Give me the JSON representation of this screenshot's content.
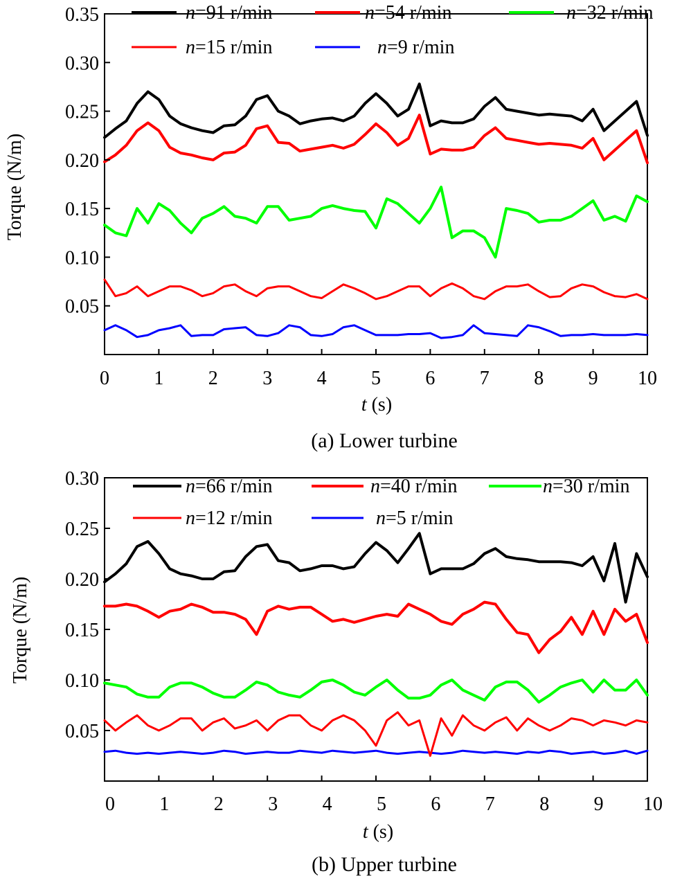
{
  "chart_data": [
    {
      "type": "line",
      "caption": "(a) Lower turbine",
      "xlabel_italic": "t",
      "xlabel_unit": " (s)",
      "ylabel": "Torque (N/m)",
      "xlim": [
        0,
        10
      ],
      "ylim": [
        0,
        0.35
      ],
      "xticks": [
        "0",
        "1",
        "2",
        "3",
        "4",
        "5",
        "6",
        "7",
        "8",
        "9",
        "10"
      ],
      "yticks": [
        "0.05",
        "0.10",
        "0.15",
        "0.20",
        "0.25",
        "0.30",
        "0.35"
      ],
      "x": [
        0,
        0.2,
        0.4,
        0.6,
        0.8,
        1.0,
        1.2,
        1.4,
        1.6,
        1.8,
        2.0,
        2.2,
        2.4,
        2.6,
        2.8,
        3.0,
        3.2,
        3.4,
        3.6,
        3.8,
        4.0,
        4.2,
        4.4,
        4.6,
        4.8,
        5.0,
        5.2,
        5.4,
        5.6,
        5.8,
        6.0,
        6.2,
        6.4,
        6.6,
        6.8,
        7.0,
        7.2,
        7.4,
        7.6,
        7.8,
        8.0,
        8.2,
        8.4,
        8.6,
        8.8,
        9.0,
        9.2,
        9.4,
        9.6,
        9.8,
        10.0
      ],
      "series": [
        {
          "italic": "n",
          "name": "=91 r/min",
          "color": "#000000",
          "width": 4,
          "values": [
            0.223,
            0.232,
            0.24,
            0.258,
            0.27,
            0.262,
            0.245,
            0.237,
            0.233,
            0.23,
            0.228,
            0.235,
            0.236,
            0.245,
            0.262,
            0.266,
            0.25,
            0.245,
            0.237,
            0.24,
            0.242,
            0.243,
            0.24,
            0.245,
            0.258,
            0.268,
            0.258,
            0.245,
            0.252,
            0.278,
            0.235,
            0.24,
            0.238,
            0.238,
            0.242,
            0.255,
            0.264,
            0.252,
            0.25,
            0.248,
            0.246,
            0.247,
            0.246,
            0.245,
            0.24,
            0.252,
            0.23,
            0.24,
            0.25,
            0.26,
            0.225
          ]
        },
        {
          "italic": "n",
          "name": "=54 r/min",
          "color": "#ff0000",
          "width": 4,
          "values": [
            0.198,
            0.205,
            0.215,
            0.23,
            0.238,
            0.23,
            0.213,
            0.207,
            0.205,
            0.202,
            0.2,
            0.207,
            0.208,
            0.215,
            0.232,
            0.235,
            0.218,
            0.217,
            0.209,
            0.211,
            0.213,
            0.215,
            0.212,
            0.216,
            0.226,
            0.237,
            0.228,
            0.215,
            0.222,
            0.246,
            0.206,
            0.211,
            0.21,
            0.21,
            0.213,
            0.225,
            0.233,
            0.222,
            0.22,
            0.218,
            0.216,
            0.217,
            0.216,
            0.215,
            0.212,
            0.222,
            0.2,
            0.21,
            0.22,
            0.23,
            0.197
          ]
        },
        {
          "italic": "n",
          "name": "=32 r/min",
          "color": "#00ff00",
          "width": 4,
          "values": [
            0.133,
            0.125,
            0.122,
            0.15,
            0.135,
            0.155,
            0.148,
            0.135,
            0.125,
            0.14,
            0.145,
            0.152,
            0.142,
            0.14,
            0.135,
            0.152,
            0.152,
            0.138,
            0.14,
            0.142,
            0.15,
            0.153,
            0.15,
            0.148,
            0.147,
            0.13,
            0.16,
            0.155,
            0.145,
            0.135,
            0.15,
            0.172,
            0.12,
            0.127,
            0.127,
            0.12,
            0.1,
            0.15,
            0.148,
            0.145,
            0.136,
            0.138,
            0.138,
            0.142,
            0.15,
            0.158,
            0.138,
            0.142,
            0.137,
            0.163,
            0.157
          ]
        },
        {
          "italic": "n",
          "name": "=15 r/min",
          "color": "#ff0000",
          "width": 3,
          "values": [
            0.077,
            0.06,
            0.063,
            0.07,
            0.06,
            0.065,
            0.07,
            0.07,
            0.066,
            0.06,
            0.063,
            0.07,
            0.072,
            0.065,
            0.06,
            0.068,
            0.07,
            0.07,
            0.065,
            0.06,
            0.058,
            0.065,
            0.072,
            0.068,
            0.063,
            0.057,
            0.06,
            0.065,
            0.07,
            0.07,
            0.06,
            0.068,
            0.073,
            0.068,
            0.06,
            0.057,
            0.065,
            0.07,
            0.07,
            0.072,
            0.065,
            0.059,
            0.06,
            0.068,
            0.072,
            0.07,
            0.064,
            0.06,
            0.059,
            0.062,
            0.057
          ]
        },
        {
          "italic": "n",
          "name": "=9 r/min",
          "color": "#0000ff",
          "width": 3,
          "values": [
            0.025,
            0.03,
            0.025,
            0.018,
            0.02,
            0.025,
            0.027,
            0.03,
            0.019,
            0.02,
            0.02,
            0.026,
            0.027,
            0.028,
            0.02,
            0.019,
            0.022,
            0.03,
            0.028,
            0.02,
            0.019,
            0.021,
            0.028,
            0.03,
            0.025,
            0.02,
            0.02,
            0.02,
            0.021,
            0.021,
            0.022,
            0.017,
            0.018,
            0.02,
            0.03,
            0.022,
            0.021,
            0.02,
            0.019,
            0.03,
            0.028,
            0.024,
            0.019,
            0.02,
            0.02,
            0.021,
            0.02,
            0.02,
            0.02,
            0.021,
            0.02
          ]
        }
      ]
    },
    {
      "type": "line",
      "caption": "(b) Upper turbine",
      "xlabel_italic": "t",
      "xlabel_unit": " (s)",
      "ylabel": "Torque (N/m)",
      "xlim": [
        0,
        10
      ],
      "ylim": [
        0,
        0.3
      ],
      "xticks": [
        "0",
        "1",
        "2",
        "3",
        "4",
        "5",
        "6",
        "7",
        "8",
        "9",
        "10"
      ],
      "yticks": [
        "0.05",
        "0.10",
        "0.15",
        "0.20",
        "0.25",
        "0.30"
      ],
      "x": [
        0,
        0.2,
        0.4,
        0.6,
        0.8,
        1.0,
        1.2,
        1.4,
        1.6,
        1.8,
        2.0,
        2.2,
        2.4,
        2.6,
        2.8,
        3.0,
        3.2,
        3.4,
        3.6,
        3.8,
        4.0,
        4.2,
        4.4,
        4.6,
        4.8,
        5.0,
        5.2,
        5.4,
        5.6,
        5.8,
        6.0,
        6.2,
        6.4,
        6.6,
        6.8,
        7.0,
        7.2,
        7.4,
        7.6,
        7.8,
        8.0,
        8.2,
        8.4,
        8.6,
        8.8,
        9.0,
        9.2,
        9.4,
        9.6,
        9.8,
        10.0
      ],
      "series": [
        {
          "italic": "n",
          "name": "=66 r/min",
          "color": "#000000",
          "width": 4,
          "values": [
            0.197,
            0.205,
            0.215,
            0.232,
            0.237,
            0.225,
            0.21,
            0.205,
            0.203,
            0.2,
            0.2,
            0.207,
            0.208,
            0.222,
            0.232,
            0.234,
            0.218,
            0.216,
            0.208,
            0.21,
            0.213,
            0.213,
            0.21,
            0.212,
            0.225,
            0.236,
            0.228,
            0.216,
            0.23,
            0.245,
            0.205,
            0.21,
            0.21,
            0.21,
            0.215,
            0.225,
            0.23,
            0.222,
            0.22,
            0.219,
            0.217,
            0.217,
            0.217,
            0.216,
            0.213,
            0.222,
            0.198,
            0.235,
            0.177,
            0.225,
            0.202
          ]
        },
        {
          "italic": "n",
          "name": "=40 r/min",
          "color": "#ff0000",
          "width": 4,
          "values": [
            0.173,
            0.173,
            0.175,
            0.173,
            0.168,
            0.162,
            0.168,
            0.17,
            0.175,
            0.172,
            0.167,
            0.167,
            0.165,
            0.16,
            0.145,
            0.168,
            0.173,
            0.17,
            0.172,
            0.172,
            0.165,
            0.158,
            0.16,
            0.157,
            0.16,
            0.163,
            0.165,
            0.163,
            0.175,
            0.17,
            0.165,
            0.158,
            0.155,
            0.165,
            0.17,
            0.177,
            0.175,
            0.16,
            0.147,
            0.145,
            0.127,
            0.14,
            0.148,
            0.162,
            0.145,
            0.168,
            0.145,
            0.17,
            0.158,
            0.165,
            0.137
          ]
        },
        {
          "italic": "n",
          "name": "=30 r/min",
          "color": "#00ff00",
          "width": 4,
          "values": [
            0.097,
            0.095,
            0.093,
            0.086,
            0.083,
            0.083,
            0.093,
            0.097,
            0.097,
            0.093,
            0.087,
            0.083,
            0.083,
            0.09,
            0.098,
            0.095,
            0.088,
            0.085,
            0.083,
            0.09,
            0.098,
            0.1,
            0.095,
            0.088,
            0.085,
            0.093,
            0.1,
            0.09,
            0.082,
            0.082,
            0.085,
            0.095,
            0.1,
            0.09,
            0.085,
            0.08,
            0.093,
            0.098,
            0.098,
            0.09,
            0.078,
            0.085,
            0.093,
            0.097,
            0.1,
            0.088,
            0.1,
            0.09,
            0.09,
            0.1,
            0.085
          ]
        },
        {
          "italic": "n",
          "name": "=12 r/min",
          "color": "#ff0000",
          "width": 3,
          "values": [
            0.06,
            0.05,
            0.058,
            0.065,
            0.055,
            0.05,
            0.055,
            0.062,
            0.062,
            0.05,
            0.058,
            0.062,
            0.052,
            0.055,
            0.06,
            0.05,
            0.06,
            0.065,
            0.065,
            0.055,
            0.05,
            0.06,
            0.065,
            0.06,
            0.05,
            0.035,
            0.06,
            0.068,
            0.055,
            0.06,
            0.025,
            0.062,
            0.045,
            0.065,
            0.055,
            0.05,
            0.058,
            0.063,
            0.05,
            0.062,
            0.055,
            0.05,
            0.055,
            0.062,
            0.06,
            0.055,
            0.06,
            0.058,
            0.055,
            0.06,
            0.058
          ]
        },
        {
          "italic": "n",
          "name": "=5 r/min",
          "color": "#0000ff",
          "width": 3,
          "values": [
            0.029,
            0.03,
            0.028,
            0.027,
            0.028,
            0.027,
            0.028,
            0.029,
            0.028,
            0.027,
            0.028,
            0.03,
            0.029,
            0.027,
            0.028,
            0.029,
            0.028,
            0.028,
            0.03,
            0.029,
            0.028,
            0.03,
            0.029,
            0.028,
            0.029,
            0.03,
            0.028,
            0.027,
            0.028,
            0.029,
            0.028,
            0.027,
            0.028,
            0.03,
            0.029,
            0.028,
            0.029,
            0.028,
            0.027,
            0.029,
            0.028,
            0.03,
            0.029,
            0.027,
            0.028,
            0.029,
            0.027,
            0.028,
            0.03,
            0.027,
            0.03
          ]
        }
      ]
    }
  ]
}
